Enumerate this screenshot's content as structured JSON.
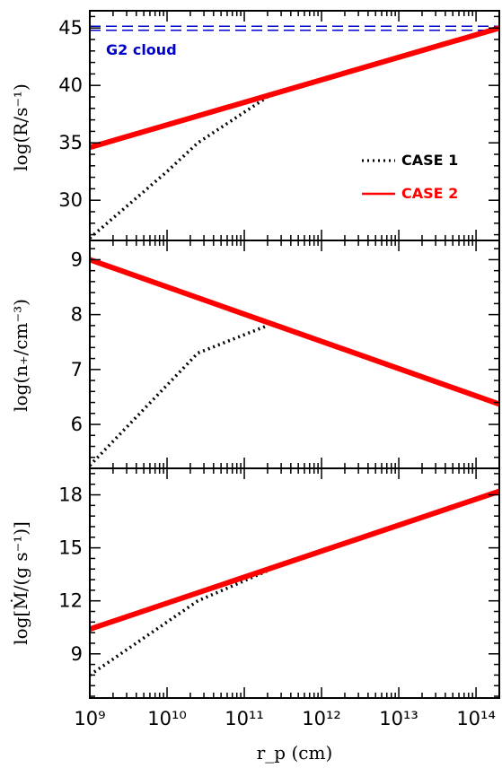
{
  "chart_data": [
    {
      "type": "line",
      "panel": "top",
      "ylabel": "log(R/s⁻¹)",
      "ylim": [
        26.5,
        46.5
      ],
      "yticks": [
        30,
        35,
        40,
        45
      ],
      "xscale": "log",
      "xlim": [
        1000000000.0,
        200000000000000.0
      ],
      "annotation": {
        "text": "G2 cloud",
        "color": "#0000cc"
      },
      "reference_lines": [
        {
          "y": 45.15,
          "style": "dashed",
          "color": "#0000cc"
        },
        {
          "y": 44.8,
          "style": "dashed",
          "color": "#0000cc"
        }
      ],
      "legend": {
        "placement": "right",
        "entries": [
          {
            "label": "CASE 1",
            "style": "dotted",
            "color": "#000000"
          },
          {
            "label": "CASE 2",
            "style": "solid",
            "color": "#ff0000"
          }
        ]
      },
      "series": [
        {
          "name": "CASE 1",
          "color": "#000000",
          "style": "dotted",
          "x": [
            1000000000.0,
            10000000000.0,
            25000000000.0,
            200000000000.0
          ],
          "y": [
            26.7,
            32.5,
            35.0,
            39.0
          ]
        },
        {
          "name": "CASE 2",
          "color": "#ff0000",
          "style": "solid",
          "x": [
            1000000000.0,
            200000000000000.0
          ],
          "y": [
            34.6,
            45.0
          ]
        }
      ]
    },
    {
      "type": "line",
      "panel": "middle",
      "ylabel": "log(n₊/cm⁻³)",
      "ylim": [
        5.2,
        9.35
      ],
      "yticks": [
        6,
        7,
        8,
        9
      ],
      "xscale": "log",
      "xlim": [
        1000000000.0,
        200000000000000.0
      ],
      "series": [
        {
          "name": "CASE 1",
          "color": "#000000",
          "style": "dotted",
          "x": [
            1000000000.0,
            25000000000.0,
            200000000000.0
          ],
          "y": [
            5.25,
            7.3,
            7.8
          ]
        },
        {
          "name": "CASE 2",
          "color": "#ff0000",
          "style": "solid",
          "x": [
            1000000000.0,
            200000000000000.0
          ],
          "y": [
            9.0,
            6.37
          ]
        }
      ]
    },
    {
      "type": "line",
      "panel": "bottom",
      "ylabel": "log[Ṁ/(g s⁻¹)]",
      "ylim": [
        6.5,
        19.5
      ],
      "yticks": [
        9,
        12,
        15,
        18
      ],
      "xscale": "log",
      "xlim": [
        1000000000.0,
        200000000000000.0
      ],
      "xlabel": "r_p (cm)",
      "xticks": [
        {
          "value": 1000000000.0,
          "label": "10⁹"
        },
        {
          "value": 10000000000.0,
          "label": "10¹⁰"
        },
        {
          "value": 100000000000.0,
          "label": "10¹¹"
        },
        {
          "value": 1000000000000.0,
          "label": "10¹²"
        },
        {
          "value": 10000000000000.0,
          "label": "10¹³"
        },
        {
          "value": 100000000000000.0,
          "label": "10¹⁴"
        }
      ],
      "series": [
        {
          "name": "CASE 1",
          "color": "#000000",
          "style": "dotted",
          "x": [
            1000000000.0,
            25000000000.0,
            200000000000.0
          ],
          "y": [
            7.8,
            12.0,
            13.7
          ]
        },
        {
          "name": "CASE 2",
          "color": "#ff0000",
          "style": "solid",
          "x": [
            1000000000.0,
            200000000000000.0
          ],
          "y": [
            10.4,
            18.2
          ]
        }
      ]
    }
  ]
}
